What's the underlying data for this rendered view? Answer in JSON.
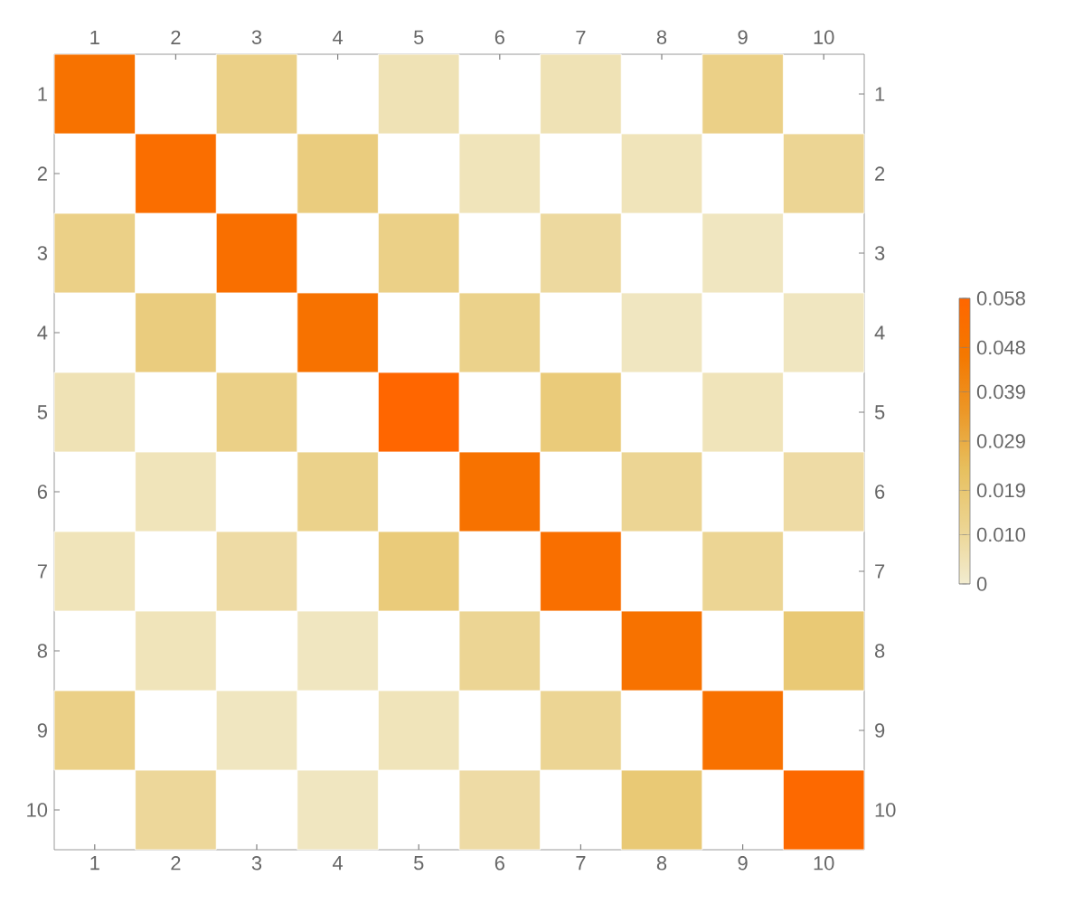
{
  "chart_data": {
    "type": "heatmap",
    "categories": [
      "1",
      "2",
      "3",
      "4",
      "5",
      "6",
      "7",
      "8",
      "9",
      "10"
    ],
    "y_categories": [
      "1",
      "2",
      "3",
      "4",
      "5",
      "6",
      "7",
      "8",
      "9",
      "10"
    ],
    "y2_categories": [
      "1",
      "2",
      "3",
      "4",
      "5",
      "6",
      "7",
      "8",
      "9",
      "10"
    ],
    "cells": [
      [
        0.05,
        null,
        0.014,
        null,
        0.005,
        null,
        0.005,
        null,
        0.014,
        null
      ],
      [
        null,
        0.053,
        null,
        0.016,
        null,
        0.004,
        null,
        0.004,
        null,
        0.011
      ],
      [
        0.014,
        null,
        0.052,
        null,
        0.014,
        null,
        0.009,
        null,
        0.003,
        null
      ],
      [
        null,
        0.016,
        null,
        0.05,
        null,
        0.013,
        null,
        0.003,
        null,
        0.003
      ],
      [
        0.005,
        null,
        0.014,
        null,
        0.058,
        null,
        0.017,
        null,
        0.004,
        null
      ],
      [
        null,
        0.004,
        null,
        0.013,
        null,
        0.05,
        null,
        0.011,
        null,
        0.008
      ],
      [
        0.004,
        null,
        0.008,
        null,
        0.017,
        null,
        0.052,
        null,
        0.011,
        null
      ],
      [
        null,
        0.004,
        null,
        0.003,
        null,
        0.011,
        null,
        0.05,
        null,
        0.018
      ],
      [
        0.014,
        null,
        0.003,
        null,
        0.004,
        null,
        0.011,
        null,
        0.051,
        null
      ],
      [
        null,
        0.01,
        null,
        0.003,
        null,
        0.008,
        null,
        0.018,
        null,
        0.056
      ]
    ],
    "clim": [
      0,
      0.058
    ],
    "cticks": [
      0,
      {
        "value": 0.01,
        "label": "0.010"
      },
      0.019,
      0.029,
      0.039,
      0.048,
      0.058
    ]
  }
}
